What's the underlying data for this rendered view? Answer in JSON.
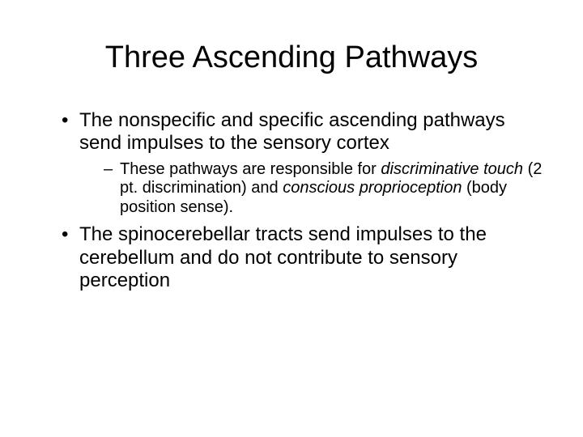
{
  "title": "Three Ascending Pathways",
  "bullets": {
    "b1": "The nonspecific and specific ascending pathways send impulses to the sensory cortex",
    "b1_sub_pre": "These pathways are responsible for ",
    "b1_sub_i1": "discriminative touch",
    "b1_sub_mid1": " (2 pt. discrimination) and ",
    "b1_sub_i2": "conscious proprioception",
    "b1_sub_post": " (body position sense).",
    "b2": "The spinocerebellar tracts send impulses to the cerebellum and do not contribute to sensory perception"
  },
  "colors": {
    "background": "#ffffff",
    "text": "#000000"
  },
  "fonts": {
    "title_size_pt": 38,
    "body_size_pt": 24,
    "sub_size_pt": 20,
    "family": "Arial"
  }
}
